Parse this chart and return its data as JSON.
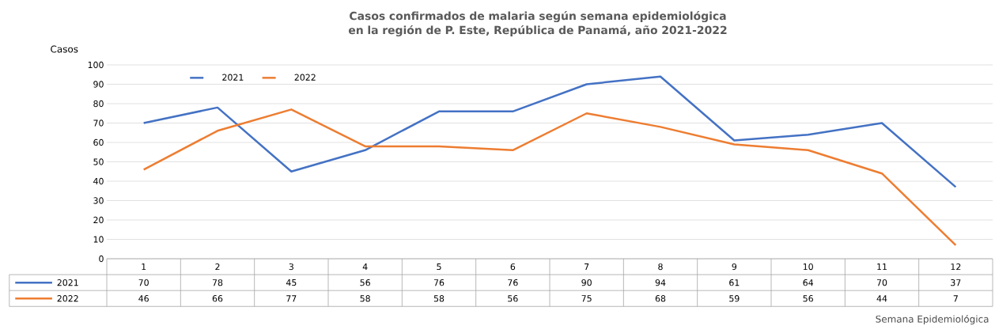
{
  "chart_data": {
    "type": "line",
    "title": "Casos confirmados de malaria según semana epidemiológica en la región de P. Este, República de Panamá, año 2021-2022",
    "ylabel": "Casos",
    "xlabel": "Semana Epidemiológica",
    "categories": [
      "1",
      "2",
      "3",
      "4",
      "5",
      "6",
      "7",
      "8",
      "9",
      "10",
      "11",
      "12"
    ],
    "series": [
      {
        "name": "2021",
        "color": "#4472c4",
        "values": [
          70,
          78,
          45,
          56,
          76,
          76,
          90,
          94,
          61,
          64,
          70,
          37
        ]
      },
      {
        "name": "2022",
        "color": "#ed7d31",
        "values": [
          46,
          66,
          77,
          58,
          58,
          56,
          75,
          68,
          59,
          56,
          44,
          7
        ]
      }
    ],
    "ylim": [
      0,
      100
    ],
    "yticks": [
      0,
      10,
      20,
      30,
      40,
      50,
      60,
      70,
      80,
      90,
      100
    ],
    "grid": "y",
    "legend": "top left",
    "data_labels": true,
    "marker": "none",
    "line_style": "solid"
  }
}
